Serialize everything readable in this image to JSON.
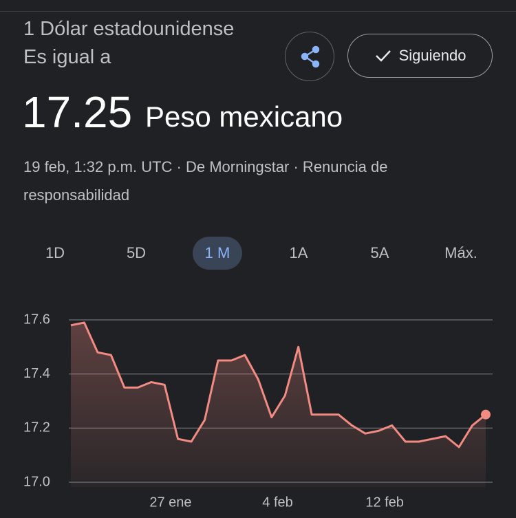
{
  "header": {
    "from": "1 Dólar estadounidense Es igual a",
    "value": "17.25",
    "unit": "Peso mexicano",
    "source": "19 feb, 1:32 p.m. UTC · De Morningstar · Renuncia de responsabilidad",
    "follow": "Siguiendo"
  },
  "tabs": [
    "1D",
    "5D",
    "1 M",
    "1A",
    "5A",
    "Máx."
  ],
  "selected_tab": 2,
  "chart_data": {
    "type": "line",
    "categories": [
      null,
      null,
      null,
      null,
      null,
      null,
      null,
      "27 ene",
      null,
      null,
      null,
      null,
      null,
      null,
      null,
      "4 feb",
      null,
      null,
      null,
      null,
      null,
      null,
      null,
      "12 feb",
      null,
      null,
      null,
      null,
      null,
      null,
      null,
      null
    ],
    "values": [
      17.58,
      17.59,
      17.48,
      17.47,
      17.35,
      17.35,
      17.37,
      17.36,
      17.16,
      17.15,
      17.23,
      17.45,
      17.45,
      17.47,
      17.38,
      17.24,
      17.32,
      17.5,
      17.25,
      17.25,
      17.25,
      17.21,
      17.18,
      17.19,
      17.21,
      17.15,
      17.15,
      17.16,
      17.17,
      17.13,
      17.21,
      17.25
    ],
    "color": "#f28b82",
    "ylim": [
      17.0,
      17.6
    ],
    "yticks": [
      {
        "value": 17.0,
        "label": "17.0"
      },
      17.2,
      17.4,
      17.6
    ],
    "grid": true
  }
}
